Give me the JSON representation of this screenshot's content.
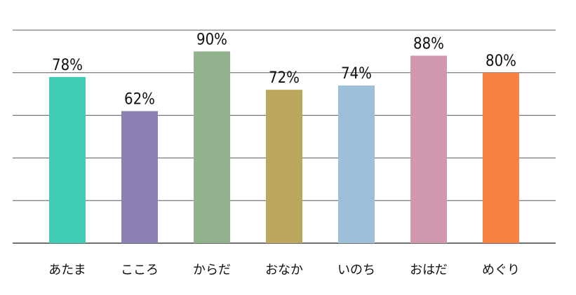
{
  "chart_data": {
    "type": "bar",
    "categories": [
      "あたま",
      "こころ",
      "からだ",
      "おなか",
      "いのち",
      "おはだ",
      "めぐり"
    ],
    "values": [
      78,
      62,
      90,
      72,
      74,
      88,
      80
    ],
    "value_labels": [
      "78%",
      "62%",
      "90%",
      "72%",
      "74%",
      "88%",
      "80%"
    ],
    "colors": [
      "#41CDB4",
      "#8C80B4",
      "#91B28C",
      "#BBA85E",
      "#9CC0D8",
      "#D098AE",
      "#F68244"
    ],
    "ylim": [
      0,
      100
    ],
    "grid": true,
    "legend": "none"
  }
}
